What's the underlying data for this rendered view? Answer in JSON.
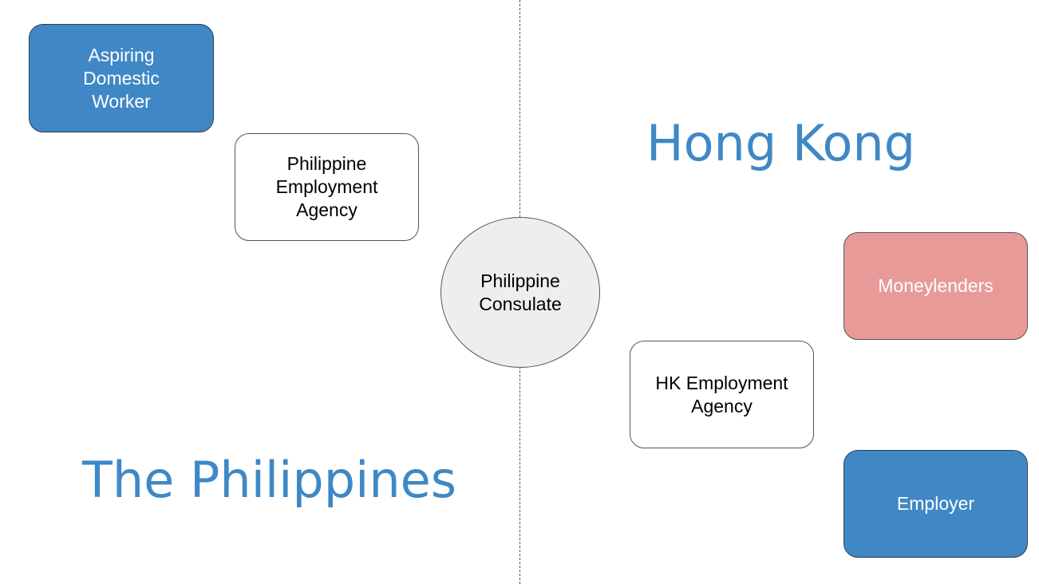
{
  "regions": {
    "hong_kong": "Hong Kong",
    "philippines": "The Philippines"
  },
  "nodes": {
    "aspiring_worker": "Aspiring\nDomestic\nWorker",
    "ph_agency": "Philippine\nEmployment\nAgency",
    "consulate": "Philippine\nConsulate",
    "moneylenders": "Moneylenders",
    "hk_agency": "HK Employment\nAgency",
    "employer": "Employer"
  },
  "colors": {
    "accent_blue": "#3f88c5",
    "moneylender_pink": "#e89a99",
    "consulate_gray": "#eeeeee"
  }
}
